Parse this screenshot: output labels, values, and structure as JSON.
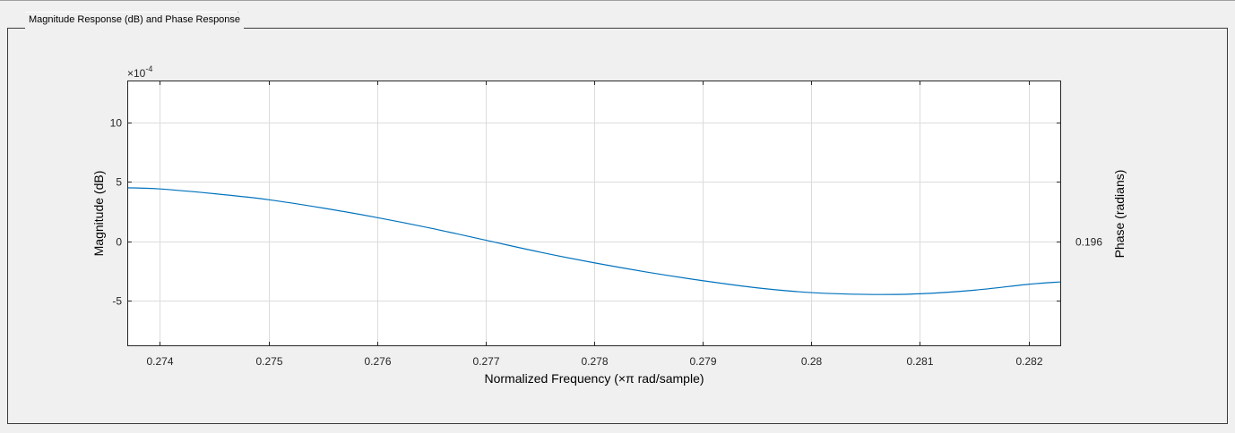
{
  "panel": {
    "title": "Magnitude Response (dB) and Phase Response"
  },
  "colors": {
    "line": "#0072bd",
    "grid": "#dcdcdc",
    "axis": "#262626",
    "background": "#f0f0f0",
    "plot_background": "#ffffff"
  },
  "chart_data": {
    "type": "line",
    "title": "",
    "xlabel": "Normalized Frequency (×π rad/sample)",
    "ylabel": "Magnitude (dB)",
    "y2label": "Phase (radians)",
    "y_exponent_label": "×10",
    "y_exponent_power": "-4",
    "xlim": [
      0.2737,
      0.2823
    ],
    "ylim": [
      -8.8,
      13.5
    ],
    "grid": true,
    "x_ticks": [
      0.274,
      0.275,
      0.276,
      0.277,
      0.278,
      0.279,
      0.28,
      0.281,
      0.282
    ],
    "x_tick_labels": [
      "0.274",
      "0.275",
      "0.276",
      "0.277",
      "0.278",
      "0.279",
      "0.28",
      "0.281",
      "0.282"
    ],
    "y_ticks": [
      10,
      5,
      0,
      -5
    ],
    "y_tick_labels": [
      "10",
      "5",
      "0",
      "-5"
    ],
    "y2_ticks": [
      0
    ],
    "y2_tick_labels": [
      "0.196"
    ],
    "series": [
      {
        "x": [
          0.2737,
          0.274,
          0.2745,
          0.275,
          0.2755,
          0.276,
          0.2765,
          0.277,
          0.2775,
          0.278,
          0.2785,
          0.279,
          0.2795,
          0.28,
          0.2805,
          0.281,
          0.2815,
          0.282,
          0.2823
        ],
        "values": [
          4.5,
          4.4,
          4.0,
          3.5,
          2.8,
          2.0,
          1.1,
          0.1,
          -0.9,
          -1.8,
          -2.6,
          -3.3,
          -3.9,
          -4.3,
          -4.45,
          -4.4,
          -4.1,
          -3.6,
          -3.4
        ]
      }
    ]
  }
}
